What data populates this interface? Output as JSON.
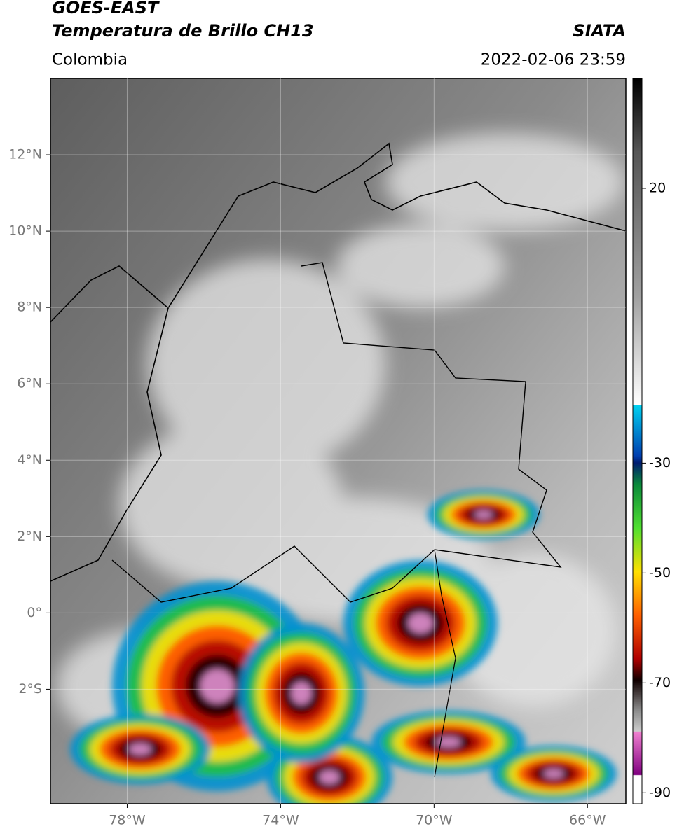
{
  "header": {
    "title": "GOES-EAST",
    "subtitle": "Temperatura de Brillo CH13",
    "source": "SIATA",
    "region": "Colombia",
    "datetime": "2022-02-06 23:59"
  },
  "map": {
    "lon_range": [
      -80,
      -65
    ],
    "lat_range": [
      -5,
      14
    ],
    "lat_ticks": [
      {
        "value": 12,
        "label": "12°N"
      },
      {
        "value": 10,
        "label": "10°N"
      },
      {
        "value": 8,
        "label": "8°N"
      },
      {
        "value": 6,
        "label": "6°N"
      },
      {
        "value": 4,
        "label": "4°N"
      },
      {
        "value": 2,
        "label": "2°N"
      },
      {
        "value": 0,
        "label": "0°"
      },
      {
        "value": -2,
        "label": "2°S"
      }
    ],
    "lon_ticks": [
      {
        "value": -78,
        "label": "78°W"
      },
      {
        "value": -74,
        "label": "74°W"
      },
      {
        "value": -70,
        "label": "70°W"
      },
      {
        "value": -66,
        "label": "66°W"
      }
    ]
  },
  "colorbar": {
    "range": [
      -92,
      40
    ],
    "ticks": [
      20,
      -30,
      -50,
      -70,
      -90
    ]
  }
}
